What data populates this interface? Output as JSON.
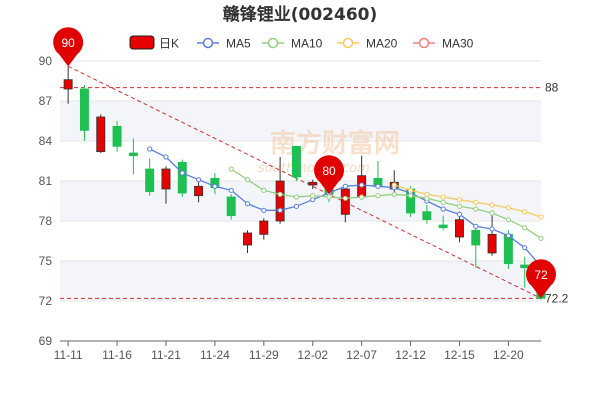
{
  "chart_data": {
    "type": "candlestick",
    "title": "赣锋锂业(002460)",
    "legend": [
      {
        "name": "日K",
        "color": "#e60000"
      },
      {
        "name": "MA5",
        "color": "#5b7fd6"
      },
      {
        "name": "MA10",
        "color": "#93cf7e"
      },
      {
        "name": "MA20",
        "color": "#f5c95c"
      },
      {
        "name": "MA30",
        "color": "#f08080"
      }
    ],
    "ylim": [
      69,
      90
    ],
    "yticks": [
      69,
      72,
      75,
      78,
      81,
      84,
      87,
      90
    ],
    "xtick_labels": [
      "11-11",
      "11-16",
      "11-21",
      "11-24",
      "11-29",
      "12-02",
      "12-07",
      "12-12",
      "12-15",
      "12-20"
    ],
    "xtick_index": [
      0,
      3,
      6,
      9,
      12,
      15,
      18,
      21,
      24,
      27
    ],
    "up_color": "#e60000",
    "down_color": "#1fbf52",
    "candles": [
      {
        "o": 87.9,
        "h": 89.6,
        "l": 86.8,
        "c": 88.6
      },
      {
        "o": 87.9,
        "h": 88.2,
        "l": 84.0,
        "c": 84.8
      },
      {
        "o": 83.2,
        "h": 86.0,
        "l": 83.1,
        "c": 85.8
      },
      {
        "o": 85.1,
        "h": 85.5,
        "l": 83.2,
        "c": 83.6
      },
      {
        "o": 83.1,
        "h": 84.2,
        "l": 81.5,
        "c": 82.9
      },
      {
        "o": 81.9,
        "h": 82.7,
        "l": 79.9,
        "c": 80.2
      },
      {
        "o": 80.4,
        "h": 82.1,
        "l": 79.3,
        "c": 81.9
      },
      {
        "o": 82.4,
        "h": 82.6,
        "l": 79.8,
        "c": 80.1
      },
      {
        "o": 79.9,
        "h": 80.9,
        "l": 79.4,
        "c": 80.6
      },
      {
        "o": 81.2,
        "h": 81.6,
        "l": 80.0,
        "c": 80.5
      },
      {
        "o": 79.8,
        "h": 80.0,
        "l": 78.1,
        "c": 78.4
      },
      {
        "o": 76.2,
        "h": 77.3,
        "l": 75.6,
        "c": 77.1
      },
      {
        "o": 77.0,
        "h": 78.2,
        "l": 76.6,
        "c": 78.0
      },
      {
        "o": 78.0,
        "h": 82.8,
        "l": 77.8,
        "c": 81.0
      },
      {
        "o": 83.6,
        "h": 83.6,
        "l": 81.0,
        "c": 81.3
      },
      {
        "o": 80.7,
        "h": 81.1,
        "l": 80.4,
        "c": 80.9
      },
      {
        "o": 80.6,
        "h": 80.8,
        "l": 79.4,
        "c": 80.0
      },
      {
        "o": 78.5,
        "h": 80.6,
        "l": 77.9,
        "c": 80.4
      },
      {
        "o": 79.8,
        "h": 82.9,
        "l": 79.6,
        "c": 81.4
      },
      {
        "o": 81.2,
        "h": 82.5,
        "l": 80.4,
        "c": 80.6
      },
      {
        "o": 80.4,
        "h": 81.8,
        "l": 79.9,
        "c": 80.9
      },
      {
        "o": 80.4,
        "h": 80.6,
        "l": 78.3,
        "c": 78.6
      },
      {
        "o": 78.7,
        "h": 79.2,
        "l": 77.8,
        "c": 78.1
      },
      {
        "o": 77.7,
        "h": 78.4,
        "l": 77.3,
        "c": 77.5
      },
      {
        "o": 76.8,
        "h": 78.7,
        "l": 76.4,
        "c": 78.1
      },
      {
        "o": 77.3,
        "h": 77.6,
        "l": 74.5,
        "c": 76.2
      },
      {
        "o": 75.6,
        "h": 78.8,
        "l": 75.4,
        "c": 77.0
      },
      {
        "o": 77.0,
        "h": 77.3,
        "l": 74.4,
        "c": 74.8
      },
      {
        "o": 74.7,
        "h": 75.3,
        "l": 73.0,
        "c": 74.5
      },
      {
        "o": 72.8,
        "h": 73.3,
        "l": 72.1,
        "c": 72.2
      }
    ],
    "series": [
      {
        "name": "MA5",
        "start": 5,
        "values": [
          83.4,
          82.8,
          81.6,
          81.1,
          80.6,
          80.3,
          79.3,
          78.8,
          78.8,
          79.1,
          79.6,
          80.1,
          80.6,
          80.7,
          80.6,
          80.5,
          80.1,
          79.5,
          78.9,
          78.5,
          77.6,
          77.4,
          76.9,
          76.0,
          74.6
        ]
      },
      {
        "name": "MA10",
        "start": 10,
        "values": [
          81.9,
          81.1,
          80.3,
          80.0,
          79.8,
          79.9,
          79.8,
          79.7,
          79.8,
          79.9,
          80.0,
          79.9,
          79.7,
          79.4,
          79.1,
          78.9,
          78.6,
          78.1,
          77.5,
          76.7
        ]
      },
      {
        "name": "MA20",
        "start": 20,
        "values": [
          80.7,
          80.3,
          80.0,
          79.8,
          79.6,
          79.4,
          79.2,
          79.0,
          78.7,
          78.3
        ]
      }
    ],
    "markers": [
      {
        "label": "90",
        "index": 0,
        "value": 89.6
      },
      {
        "label": "80",
        "index": 16,
        "value": 80.0
      },
      {
        "label": "72",
        "index": 29,
        "value": 72.2
      }
    ],
    "reference_lines": [
      {
        "label": "88",
        "value": 88
      },
      {
        "label": "72.2",
        "value": 72.2
      }
    ],
    "trendline": {
      "from": {
        "index": 0,
        "value": 89.6
      },
      "to": {
        "index": 29,
        "value": 72.2
      }
    },
    "watermark": {
      "main": "南方财富网",
      "sub": "southmoney.com"
    }
  }
}
